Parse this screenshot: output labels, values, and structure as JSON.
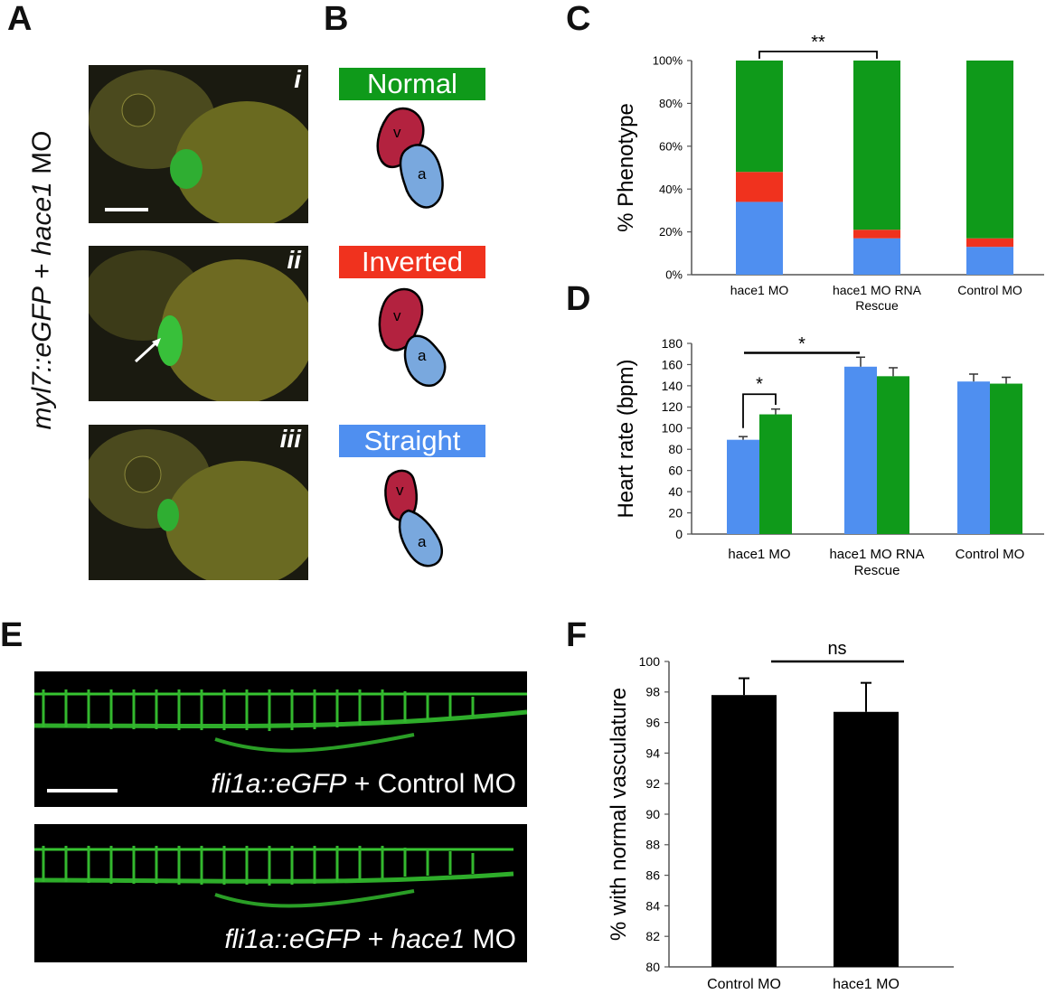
{
  "panels": {
    "A": "A",
    "B": "B",
    "C": "C",
    "D": "D",
    "E": "E",
    "F": "F"
  },
  "panelA": {
    "vertical_label_italic1": "myl7::eGFP",
    "vertical_label_plain": " + ",
    "vertical_label_italic2": "hace1",
    "vertical_label_tail": " MO",
    "images": [
      {
        "roman": "i"
      },
      {
        "roman": "ii"
      },
      {
        "roman": "iii"
      }
    ]
  },
  "panelB": {
    "phenotypes": [
      {
        "label": "Normal",
        "color": "#0f9a1a"
      },
      {
        "label": "Inverted",
        "color": "#f0321e"
      },
      {
        "label": "Straight",
        "color": "#4f8ff0"
      }
    ],
    "ventricle_letter": "v",
    "atrium_letter": "a",
    "ventricle_color": "#b3223f",
    "atrium_color": "#79a8de"
  },
  "panelE": {
    "captions": [
      {
        "italic": "fli1a::eGFP",
        "plain": " + Control MO",
        "italic2": "",
        "plain2": ""
      },
      {
        "italic": "fli1a::eGFP",
        "plain": " + ",
        "italic2": "hace1",
        "plain2": " MO"
      }
    ]
  },
  "chart_data": [
    {
      "id": "C",
      "type": "bar",
      "stacked": true,
      "categories": [
        "hace1 MO",
        "hace1 MO RNA Rescue",
        "Control MO"
      ],
      "category_lines": [
        [
          "hace1 MO"
        ],
        [
          "hace1 MO RNA",
          "Rescue"
        ],
        [
          "Control MO"
        ]
      ],
      "series": [
        {
          "name": "Straight",
          "color": "#4f8ff0",
          "values": [
            34,
            17,
            13
          ]
        },
        {
          "name": "Inverted",
          "color": "#f0321e",
          "values": [
            14,
            4,
            4
          ]
        },
        {
          "name": "Normal",
          "color": "#0f9a1a",
          "values": [
            52,
            79,
            83
          ]
        }
      ],
      "ylabel": "% Phenotype",
      "ylim": [
        0,
        100
      ],
      "yticks": [
        "0%",
        "20%",
        "40%",
        "60%",
        "80%",
        "100%"
      ],
      "annotation": "**"
    },
    {
      "id": "D",
      "type": "bar",
      "categories": [
        "hace1 MO",
        "hace1 MO RNA Rescue",
        "Control MO"
      ],
      "category_lines": [
        [
          "hace1 MO"
        ],
        [
          "hace1 MO RNA",
          "Rescue"
        ],
        [
          "Control MO"
        ]
      ],
      "series": [
        {
          "color": "#4f8ff0",
          "values": [
            89,
            158,
            144
          ],
          "errors": [
            3,
            9,
            7
          ]
        },
        {
          "color": "#0f9a1a",
          "values": [
            113,
            149,
            142
          ],
          "errors": [
            5,
            8,
            6
          ]
        }
      ],
      "ylabel": "Heart rate (bpm)",
      "ylim": [
        0,
        180
      ],
      "yticks": [
        "0",
        "20",
        "40",
        "60",
        "80",
        "100",
        "120",
        "140",
        "160",
        "180"
      ],
      "annotations": [
        "*",
        "*"
      ]
    },
    {
      "id": "F",
      "type": "bar",
      "categories": [
        "Control MO",
        "hace1 MO"
      ],
      "series": [
        {
          "color": "#000000",
          "values": [
            97.8,
            96.7
          ],
          "errors": [
            1.1,
            1.9
          ]
        }
      ],
      "ylabel": "% with normal vasculature",
      "ylim": [
        80,
        100
      ],
      "yticks": [
        "80",
        "82",
        "84",
        "86",
        "88",
        "90",
        "92",
        "94",
        "96",
        "98",
        "100"
      ],
      "annotation": "ns"
    }
  ]
}
